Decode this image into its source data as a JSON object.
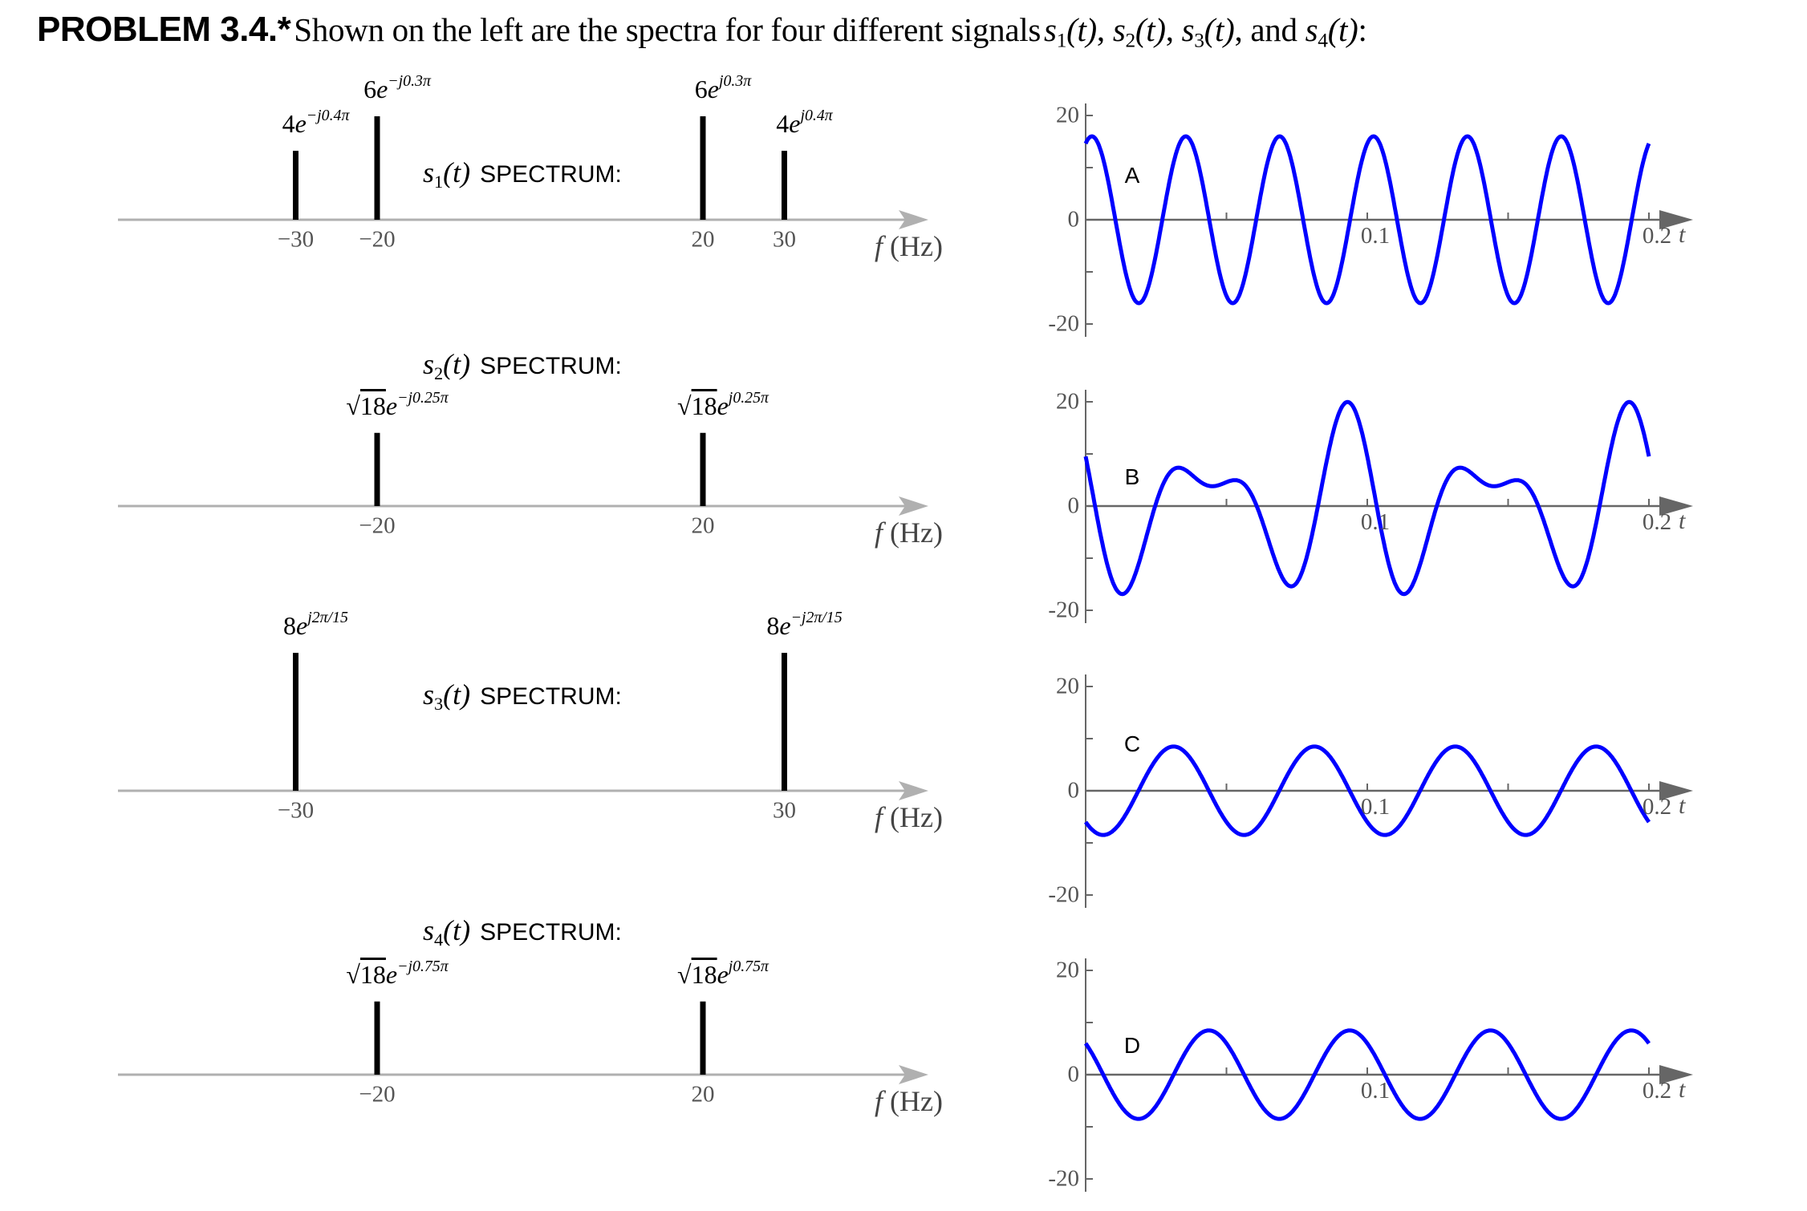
{
  "header": {
    "problem_label": "PROBLEM 3.4.*",
    "intro": "Shown on the left are the spectra for four different signals",
    "signals": [
      {
        "name": "s",
        "sub": "1",
        "arg": "(t)",
        "sep": ", "
      },
      {
        "name": "s",
        "sub": "2",
        "arg": "(t)",
        "sep": ", "
      },
      {
        "name": "s",
        "sub": "3",
        "arg": "(t)",
        "sep": ", and "
      },
      {
        "name": "s",
        "sub": "4",
        "arg": "(t)",
        "sep": ":"
      }
    ]
  },
  "spectra": [
    {
      "signal": "s",
      "sub": "1",
      "arg": "(t)",
      "word": "SPECTRUM:",
      "axis_label": "f (Hz)",
      "lines": [
        {
          "freq": -30,
          "amp": 4,
          "coef": "4",
          "exp": "−j0.4π",
          "tick": "−30"
        },
        {
          "freq": -20,
          "amp": 6,
          "coef": "6",
          "exp": "−j0.3π",
          "tick": "−20"
        },
        {
          "freq": 20,
          "amp": 6,
          "coef": "6",
          "exp": "j0.3π",
          "tick": "20"
        },
        {
          "freq": 30,
          "amp": 4,
          "coef": "4",
          "exp": "j0.4π",
          "tick": "30"
        }
      ]
    },
    {
      "signal": "s",
      "sub": "2",
      "arg": "(t)",
      "word": "SPECTRUM:",
      "axis_label": "f (Hz)",
      "lines": [
        {
          "freq": -20,
          "amp": 4.2426,
          "coef": "18",
          "sqrt": true,
          "exp": "−j0.25π",
          "tick": "−20"
        },
        {
          "freq": 20,
          "amp": 4.2426,
          "coef": "18",
          "sqrt": true,
          "exp": "j0.25π",
          "tick": "20"
        }
      ]
    },
    {
      "signal": "s",
      "sub": "3",
      "arg": "(t)",
      "word": "SPECTRUM:",
      "axis_label": "f (Hz)",
      "lines": [
        {
          "freq": -30,
          "amp": 8,
          "coef": "8",
          "exp": "j2π/15",
          "tick": "−30"
        },
        {
          "freq": 30,
          "amp": 8,
          "coef": "8",
          "exp": "−j2π/15",
          "tick": "30"
        }
      ]
    },
    {
      "signal": "s",
      "sub": "4",
      "arg": "(t)",
      "word": "SPECTRUM:",
      "axis_label": "f (Hz)",
      "lines": [
        {
          "freq": -20,
          "amp": 4.2426,
          "coef": "18",
          "sqrt": true,
          "exp": "−j0.75π",
          "tick": "−20"
        },
        {
          "freq": 20,
          "amp": 4.2426,
          "coef": "18",
          "sqrt": true,
          "exp": "j0.75π",
          "tick": "20"
        }
      ]
    }
  ],
  "chart_data": [
    {
      "type": "line",
      "letter": "A",
      "xlabel": "t",
      "xlim": [
        0,
        0.2
      ],
      "ylim": [
        -20,
        20
      ],
      "y_ticks": [
        "20",
        "0",
        "-20"
      ],
      "x_ticks": [
        "0.1",
        "0.2"
      ],
      "components": [
        {
          "freq": 30,
          "amp": 16,
          "phase": -0.13333
        }
      ]
    },
    {
      "type": "line",
      "letter": "B",
      "xlabel": "t",
      "xlim": [
        0,
        0.2
      ],
      "ylim": [
        -20,
        20
      ],
      "y_ticks": [
        "20",
        "0",
        "-20"
      ],
      "x_ticks": [
        "0.1",
        "0.2"
      ],
      "components": [
        {
          "freq": 20,
          "amp": 12,
          "phase": 0.3
        },
        {
          "freq": 30,
          "amp": 8,
          "phase": 0.4
        }
      ]
    },
    {
      "type": "line",
      "letter": "C",
      "xlabel": "t",
      "xlim": [
        0,
        0.2
      ],
      "ylim": [
        -20,
        20
      ],
      "y_ticks": [
        "20",
        "0",
        "-20"
      ],
      "x_ticks": [
        "0.1",
        "0.2"
      ],
      "components": [
        {
          "freq": 20,
          "amp": 8.485,
          "phase": 0.75
        }
      ]
    },
    {
      "type": "line",
      "letter": "D",
      "xlabel": "t",
      "xlim": [
        0,
        0.2
      ],
      "ylim": [
        -20,
        20
      ],
      "y_ticks": [
        "20",
        "0",
        "-20"
      ],
      "x_ticks": [
        "0.1",
        "0.2"
      ],
      "components": [
        {
          "freq": 20,
          "amp": 8.485,
          "phase": 0.25
        }
      ]
    }
  ],
  "colors": {
    "wave": "#0000ff",
    "spectral_line": "#000000",
    "spectrum_axis": "#b0b0b0",
    "plot_axis": "#666666"
  }
}
